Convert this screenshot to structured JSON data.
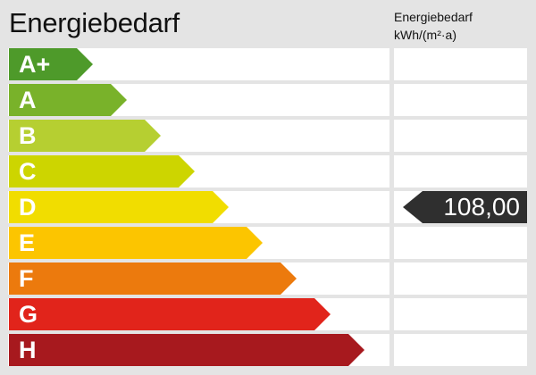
{
  "title": "Energiebedarf",
  "column_header": {
    "line1": "Energiebedarf",
    "line2": "kWh/(m²·a)"
  },
  "classes": [
    {
      "label": "A+",
      "color": "#4e9a2a"
    },
    {
      "label": "A",
      "color": "#79b22a"
    },
    {
      "label": "B",
      "color": "#b6cf31"
    },
    {
      "label": "C",
      "color": "#cdd500"
    },
    {
      "label": "D",
      "color": "#f1dd00"
    },
    {
      "label": "E",
      "color": "#fcc500"
    },
    {
      "label": "F",
      "color": "#ec7a0d"
    },
    {
      "label": "G",
      "color": "#e1241b"
    },
    {
      "label": "H",
      "color": "#a7191e"
    }
  ],
  "marker": {
    "value": "108,00",
    "class": "D",
    "color": "#2f2f2f"
  }
}
